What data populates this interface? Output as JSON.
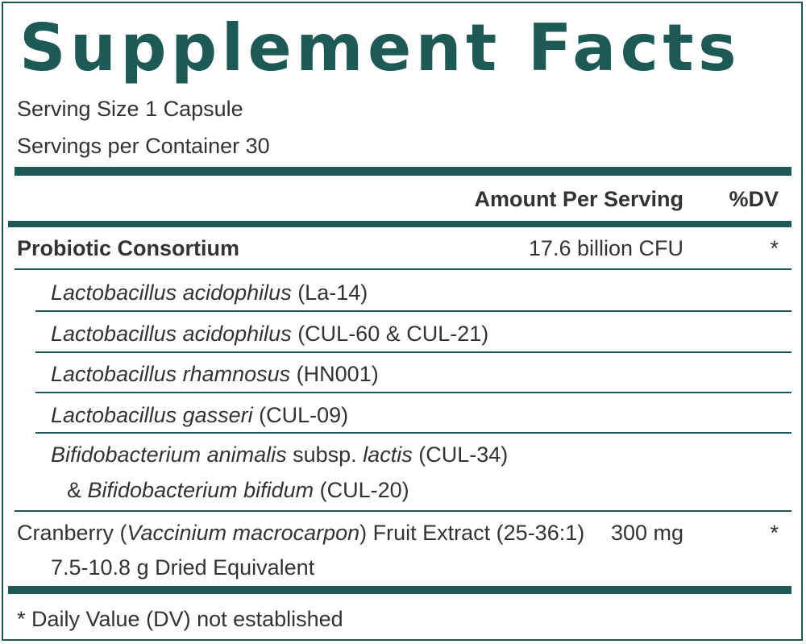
{
  "label": {
    "title": "Supplement Facts",
    "serving_size": "Serving Size 1 Capsule",
    "servings_per_container": "Servings per Container 30",
    "header": {
      "amount": "Amount Per Serving",
      "dv": "%DV"
    },
    "blend": {
      "name": "Probiotic Consortium",
      "amount": "17.6 billion CFU",
      "dv": "*"
    },
    "strains": [
      {
        "species": "Lactobacillus acidophilus",
        "strain": " (La-14)"
      },
      {
        "species": "Lactobacillus acidophilus",
        "strain": " (CUL-60 & CUL-21)"
      },
      {
        "species": "Lactobacillus rhamnosus",
        "strain": " (HN001)"
      },
      {
        "species": "Lactobacillus gasseri",
        "strain": " (CUL-09)"
      }
    ],
    "bifido": {
      "species_a": "Bifidobacterium animalis",
      "subsp": " subsp. ",
      "lactis": "lactis",
      "strain_a": " (CUL-34)",
      "amp": "& ",
      "species_b": "Bifidobacterium bifidum",
      "strain_b": " (CUL-20)"
    },
    "cranberry": {
      "prefix": "Cranberry (",
      "latin": "Vaccinium macrocarpon",
      "suffix": ") Fruit Extract (25-36:1)",
      "amount": "300 mg",
      "dv": "*",
      "equivalent": "7.5-10.8 g Dried Equivalent"
    },
    "footnote": "* Daily Value (DV) not established"
  },
  "colors": {
    "accent": "#1d5a55",
    "text": "#333333"
  }
}
